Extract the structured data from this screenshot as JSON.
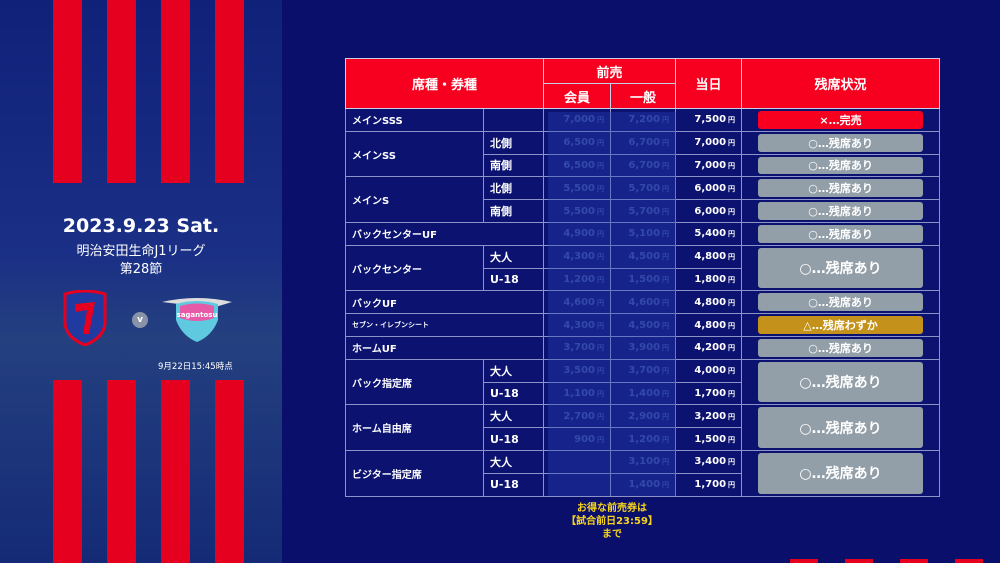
{
  "match": {
    "date": "2023.9.23 Sat.",
    "league": "明治安田生命J1リーグ",
    "round": "第28節",
    "vs": "v",
    "as_of": "9月22日15:45時点",
    "home_team": "FC東京",
    "away_team": "sagantosu"
  },
  "table": {
    "headers": {
      "seat": "席種・券種",
      "advance": "前売",
      "member": "会員",
      "general": "一般",
      "day": "当日",
      "status": "残席状況"
    },
    "yen": "円",
    "colors": {
      "sold_out": "#f7001f",
      "available": "#939fa8",
      "few": "#c4921a"
    },
    "rows": [
      {
        "name": "メインSSS",
        "sub": "",
        "member": "7,000",
        "general": "7,200",
        "day": "7,500",
        "status": "×…完売",
        "status_type": "sold_out"
      },
      {
        "name": "メインSS",
        "sub": "北側",
        "member": "6,500",
        "general": "6,700",
        "day": "7,000",
        "status": "○…残席あり",
        "status_type": "available"
      },
      {
        "name": "",
        "sub": "南側",
        "member": "6,500",
        "general": "6,700",
        "day": "7,000",
        "status": "○…残席あり",
        "status_type": "available"
      },
      {
        "name": "メインS",
        "sub": "北側",
        "member": "5,500",
        "general": "5,700",
        "day": "6,000",
        "status": "○…残席あり",
        "status_type": "available"
      },
      {
        "name": "",
        "sub": "南側",
        "member": "5,500",
        "general": "5,700",
        "day": "6,000",
        "status": "○…残席あり",
        "status_type": "available"
      },
      {
        "name": "バックセンターUF",
        "sub": null,
        "member": "4,900",
        "general": "5,100",
        "day": "5,400",
        "status": "○…残席あり",
        "status_type": "available"
      },
      {
        "name": "バックセンター",
        "sub": "大人",
        "member": "4,300",
        "general": "4,500",
        "day": "4,800",
        "status": "○…残席あり",
        "status_type": "available",
        "span": 2
      },
      {
        "name": "",
        "sub": "U-18",
        "member": "1,200",
        "general": "1,500",
        "day": "1,800"
      },
      {
        "name": "バックUF",
        "sub": null,
        "member": "4,600",
        "general": "4,600",
        "day": "4,800",
        "status": "○…残席あり",
        "status_type": "available"
      },
      {
        "name": "セブン・イレブンシート",
        "sub": null,
        "member": "4,300",
        "general": "4,500",
        "day": "4,800",
        "status": "△…残席わずか",
        "status_type": "few",
        "small": true
      },
      {
        "name": "ホームUF",
        "sub": null,
        "member": "3,700",
        "general": "3,900",
        "day": "4,200",
        "status": "○…残席あり",
        "status_type": "available"
      },
      {
        "name": "バック指定席",
        "sub": "大人",
        "member": "3,500",
        "general": "3,700",
        "day": "4,000",
        "status": "○…残席あり",
        "status_type": "available",
        "span": 2
      },
      {
        "name": "",
        "sub": "U-18",
        "member": "1,100",
        "general": "1,400",
        "day": "1,700"
      },
      {
        "name": "ホーム自由席",
        "sub": "大人",
        "member": "2,700",
        "general": "2,900",
        "day": "3,200",
        "status": "○…残席あり",
        "status_type": "available",
        "span": 2
      },
      {
        "name": "",
        "sub": "U-18",
        "member": "900",
        "general": "1,200",
        "day": "1,500"
      },
      {
        "name": "ビジター指定席",
        "sub": "大人",
        "member": "",
        "general": "3,100",
        "day": "3,400",
        "status": "○…残席あり",
        "status_type": "available",
        "span": 2
      },
      {
        "name": "",
        "sub": "U-18",
        "member": "",
        "general": "1,400",
        "day": "1,700"
      }
    ],
    "note": [
      "お得な前売券は",
      "【試合前日23:59】",
      "まで"
    ]
  }
}
